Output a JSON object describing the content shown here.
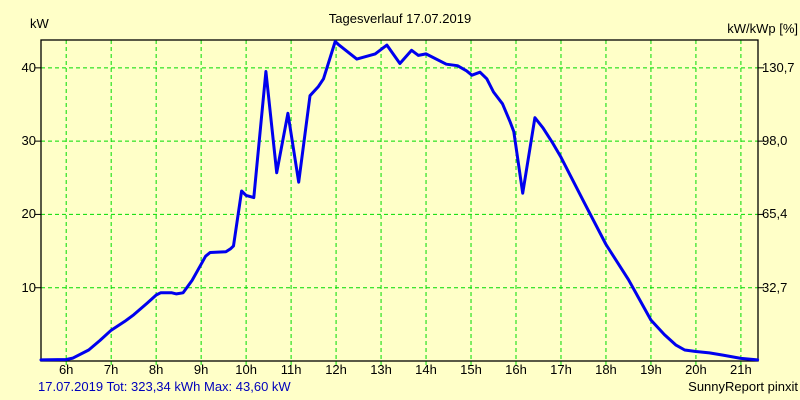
{
  "header": {
    "title": "Tagesverlauf 17.07.2019",
    "left_unit": "kW",
    "right_unit": "kW/kWp [%]"
  },
  "footer": {
    "summary": "17.07.2019 Tot: 323,34 kWh Max: 43,60 kW",
    "credit": "SunnyReport pinxit"
  },
  "colors": {
    "background": "#FFFFC8",
    "grid": "#00DC00",
    "line": "#0000EE",
    "text": "#000000",
    "footer_text": "#0000BB"
  },
  "chart_data": {
    "type": "line",
    "title": "Tagesverlauf 17.07.2019",
    "date": "17.07.2019",
    "total_kwh": "323,34",
    "max_kw": "43,60",
    "grid": "dashed",
    "legend": "none",
    "x_axis": {
      "tick_hours": [
        6,
        7,
        8,
        9,
        10,
        11,
        12,
        13,
        14,
        15,
        16,
        17,
        18,
        19,
        20,
        21
      ],
      "tick_labels": [
        "6h",
        "7h",
        "8h",
        "9h",
        "10h",
        "11h",
        "12h",
        "13h",
        "14h",
        "15h",
        "16h",
        "17h",
        "18h",
        "19h",
        "20h",
        "21h"
      ],
      "range": [
        5.44,
        21.38
      ]
    },
    "left_axis": {
      "label": "kW",
      "ticks": [
        10,
        20,
        30,
        40
      ],
      "range": [
        0,
        43.8
      ]
    },
    "right_axis": {
      "label": "kW/kWp [%]",
      "tick_labels": [
        "32,7",
        "65,4",
        "98,0",
        "130,7"
      ],
      "at_left_values": [
        10,
        20,
        30,
        40
      ]
    },
    "points": [
      [
        5.44,
        0.15
      ],
      [
        6.0,
        0.2
      ],
      [
        6.15,
        0.4
      ],
      [
        6.5,
        1.5
      ],
      [
        6.75,
        2.8
      ],
      [
        7.0,
        4.2
      ],
      [
        7.3,
        5.4
      ],
      [
        7.5,
        6.3
      ],
      [
        7.8,
        7.9
      ],
      [
        8.0,
        9.0
      ],
      [
        8.1,
        9.3
      ],
      [
        8.35,
        9.3
      ],
      [
        8.45,
        9.15
      ],
      [
        8.6,
        9.3
      ],
      [
        8.8,
        11.0
      ],
      [
        9.0,
        13.2
      ],
      [
        9.1,
        14.3
      ],
      [
        9.2,
        14.8
      ],
      [
        9.55,
        14.9
      ],
      [
        9.65,
        15.3
      ],
      [
        9.72,
        15.7
      ],
      [
        9.9,
        23.2
      ],
      [
        10.0,
        22.6
      ],
      [
        10.17,
        22.3
      ],
      [
        10.44,
        39.5
      ],
      [
        10.68,
        25.7
      ],
      [
        10.93,
        33.8
      ],
      [
        11.17,
        24.4
      ],
      [
        11.42,
        36.2
      ],
      [
        11.6,
        37.4
      ],
      [
        11.72,
        38.5
      ],
      [
        11.98,
        43.6
      ],
      [
        12.05,
        43.2
      ],
      [
        12.46,
        41.2
      ],
      [
        12.87,
        41.9
      ],
      [
        13.13,
        43.1
      ],
      [
        13.42,
        40.6
      ],
      [
        13.68,
        42.4
      ],
      [
        13.83,
        41.7
      ],
      [
        14.0,
        41.9
      ],
      [
        14.45,
        40.5
      ],
      [
        14.7,
        40.3
      ],
      [
        14.9,
        39.6
      ],
      [
        15.02,
        39.0
      ],
      [
        15.2,
        39.4
      ],
      [
        15.35,
        38.5
      ],
      [
        15.5,
        36.7
      ],
      [
        15.7,
        35.1
      ],
      [
        15.87,
        32.6
      ],
      [
        15.95,
        31.3
      ],
      [
        16.15,
        22.9
      ],
      [
        16.42,
        33.2
      ],
      [
        16.6,
        31.8
      ],
      [
        16.8,
        29.9
      ],
      [
        17.0,
        27.8
      ],
      [
        17.5,
        21.8
      ],
      [
        18.0,
        15.9
      ],
      [
        18.5,
        11.1
      ],
      [
        19.0,
        5.6
      ],
      [
        19.3,
        3.6
      ],
      [
        19.55,
        2.2
      ],
      [
        19.75,
        1.5
      ],
      [
        20.0,
        1.3
      ],
      [
        20.3,
        1.1
      ],
      [
        20.6,
        0.8
      ],
      [
        21.0,
        0.35
      ],
      [
        21.37,
        0.15
      ]
    ]
  }
}
